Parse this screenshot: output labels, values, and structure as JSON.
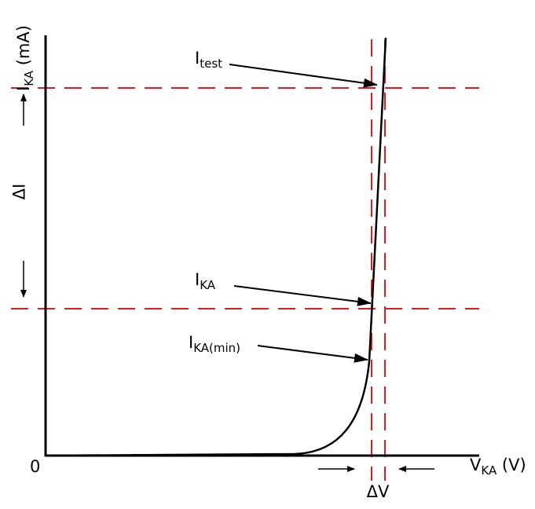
{
  "y_axis": {
    "label": "I",
    "label_sub": "KA",
    "label_unit": "(mA)"
  },
  "x_axis": {
    "label": "V",
    "label_sub": "KA",
    "label_unit": "(V)"
  },
  "origin_label": "0",
  "delta_i_label": "ΔI",
  "delta_v_label": "ΔV",
  "annotations": {
    "itest": {
      "main": "I",
      "sub": "test"
    },
    "ika": {
      "main": "I",
      "sub": "KA"
    },
    "ikamin": {
      "main": "I",
      "sub": "KA(min)"
    }
  },
  "colors": {
    "curve": "#000000",
    "guides": "#e8191c"
  }
}
